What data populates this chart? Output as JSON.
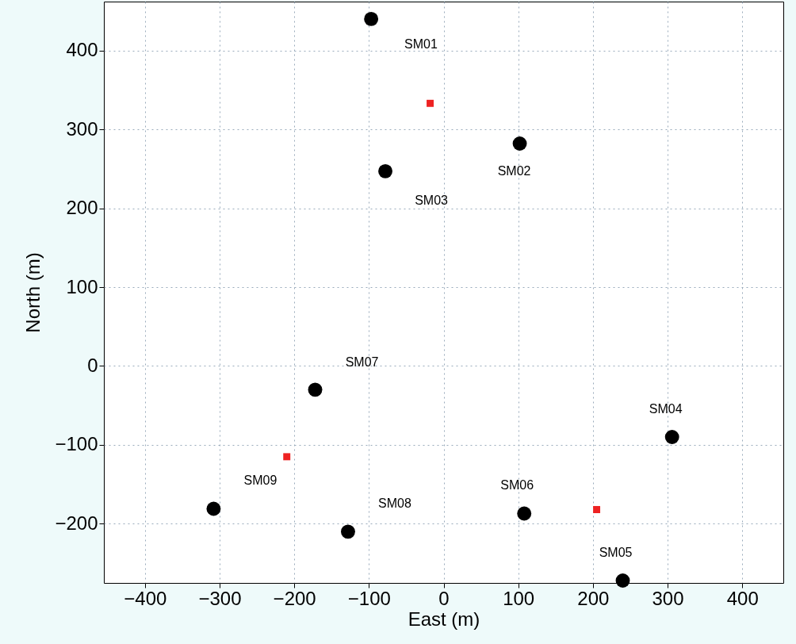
{
  "chart_data": {
    "type": "scatter",
    "xlabel": "East (m)",
    "ylabel": "North (m)",
    "xlim": [
      -455,
      455
    ],
    "ylim": [
      -275,
      462
    ],
    "xticks": [
      -400,
      -300,
      -200,
      -100,
      0,
      100,
      200,
      300,
      400
    ],
    "yticks": [
      -200,
      -100,
      0,
      100,
      200,
      300,
      400
    ],
    "grid": true,
    "series": [
      {
        "color": "#000000",
        "marker": "circle",
        "x": [
          -97,
          102,
          -78,
          306,
          240,
          108,
          -172,
          -128,
          -308
        ],
        "values": [
          440,
          282,
          247,
          -90,
          -272,
          -187,
          -30,
          -210,
          -181
        ]
      },
      {
        "color": "#ee2222",
        "marker": "square",
        "x": [
          -18,
          -210,
          205
        ],
        "values": [
          333,
          -115,
          -182
        ]
      }
    ],
    "annotations": [
      "SM01",
      {
        "text": "SM02",
        "x": 102,
        "y": 282
      },
      {
        "text": "SM03",
        "x": -78,
        "y": 247
      },
      {
        "text": "SM04",
        "x": 306,
        "y": -90
      },
      {
        "text": "SM05",
        "x": 240,
        "y": -272
      },
      {
        "text": "SM06",
        "x": 108,
        "y": -187
      },
      {
        "text": "SM07",
        "x": -172,
        "y": -30
      },
      {
        "text": "SM08",
        "x": -128,
        "y": -210
      },
      {
        "text": "SM09",
        "x": -308,
        "y": -181
      }
    ]
  }
}
